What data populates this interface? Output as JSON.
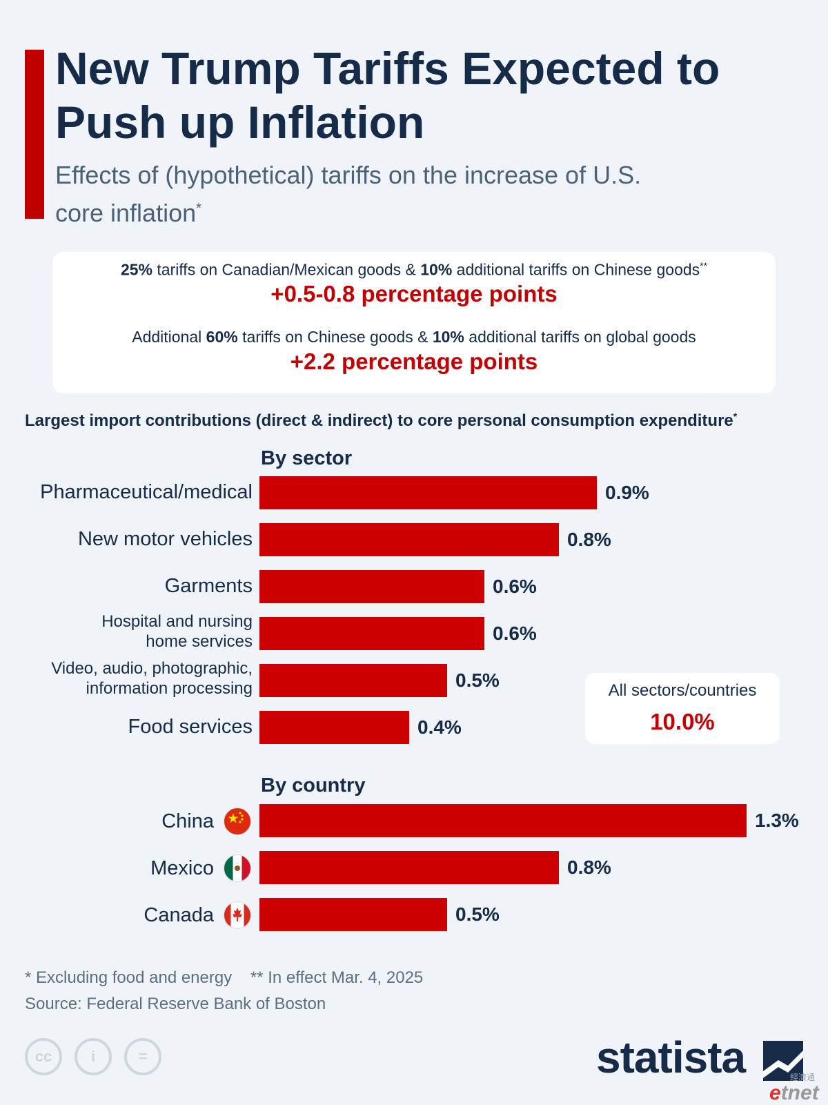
{
  "header": {
    "title": "New Trump Tariffs Expected to Push up Inflation",
    "subtitle": "Effects of (hypothetical) tariffs on the increase of U.S. core inflation",
    "subtitle_mark": "*",
    "accent_color": "#c00000"
  },
  "scenarios": [
    {
      "parts": [
        "25%",
        " tariffs on Canadian/Mexican goods & ",
        "10%",
        " additional tariffs on Chinese goods"
      ],
      "mark": "**",
      "value": "+0.5-0.8 percentage points"
    },
    {
      "parts": [
        "Additional ",
        "60%",
        " tariffs on Chinese goods & ",
        "10%",
        " additional tariffs on global goods"
      ],
      "mark": "",
      "value": "+2.2 percentage points"
    }
  ],
  "chart_heading": "Largest import contributions (direct & indirect) to core personal consumption expenditure",
  "chart_heading_mark": "*",
  "chart_data": {
    "type": "bar",
    "orientation": "horizontal",
    "unit": "%",
    "bar_color": "#cc0000",
    "groups": [
      {
        "title": "By sector",
        "categories": [
          "Pharmaceutical/medical",
          "New motor vehicles",
          "Garments",
          "Hospital and nursing home services",
          "Video, audio, photographic, information processing",
          "Food services"
        ],
        "values": [
          0.9,
          0.8,
          0.6,
          0.6,
          0.5,
          0.4
        ],
        "value_labels": [
          "0.9%",
          "0.8%",
          "0.6%",
          "0.6%",
          "0.5%",
          "0.4%"
        ]
      },
      {
        "title": "By country",
        "categories": [
          "China",
          "Mexico",
          "Canada"
        ],
        "values": [
          1.3,
          0.8,
          0.5
        ],
        "value_labels": [
          "1.3%",
          "0.8%",
          "0.5%"
        ],
        "icons": [
          "china-flag-icon",
          "mexico-flag-icon",
          "canada-flag-icon"
        ]
      }
    ],
    "xlim": [
      0,
      1.3
    ]
  },
  "total": {
    "label": "All sectors/countries",
    "value": "10.0%"
  },
  "footer": {
    "notes": "* Excluding food and energy    ** In effect Mar. 4, 2025",
    "source": "Source: Federal Reserve Bank of Boston",
    "license_icons": [
      "cc-icon",
      "attribution-icon",
      "no-derivatives-icon"
    ],
    "license_glyphs": [
      "cc",
      "i",
      "="
    ],
    "brand": "statista",
    "watermark_cn": "經濟通",
    "watermark": "etnet"
  }
}
